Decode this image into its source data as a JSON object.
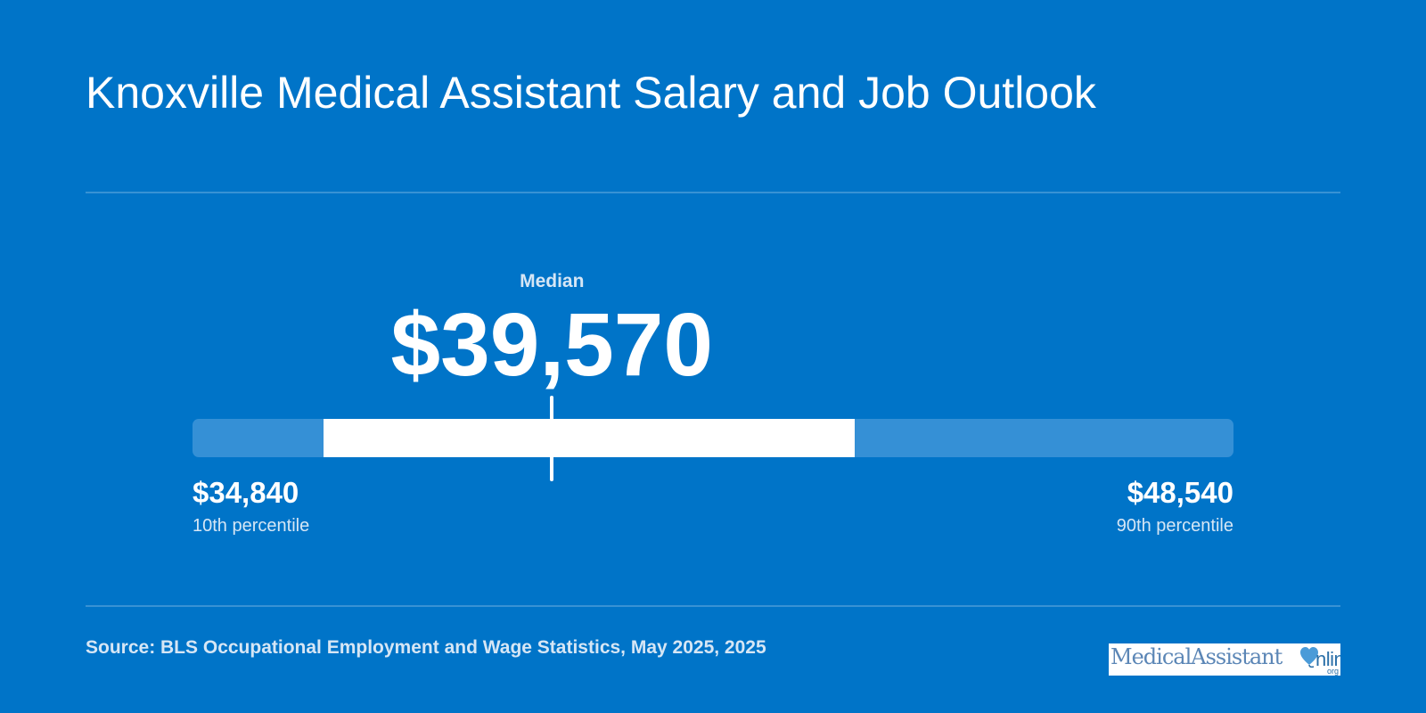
{
  "title": "Knoxville Medical Assistant Salary and Job Outlook",
  "colors": {
    "background": "#0074c8",
    "track": "#3590d6",
    "range": "#ffffff",
    "muted_text": "#d6e6f5"
  },
  "chart_data": {
    "type": "range",
    "median": {
      "label": "Median",
      "value": 39570,
      "display": "$39,570"
    },
    "low": {
      "label": "10th percentile",
      "value": 34840,
      "display": "$34,840"
    },
    "high": {
      "label": "90th percentile",
      "value": 48540,
      "display": "$48,540"
    },
    "highlighted_range": {
      "start": 36560,
      "end": 43550
    }
  },
  "source": "Source: BLS Occupational Employment and Wage Statistics, May 2025, 2025",
  "logo": {
    "text": "MedicalAssistant",
    "text2": "nline",
    "suffix": "org",
    "icon": "heart-stethoscope-icon"
  }
}
